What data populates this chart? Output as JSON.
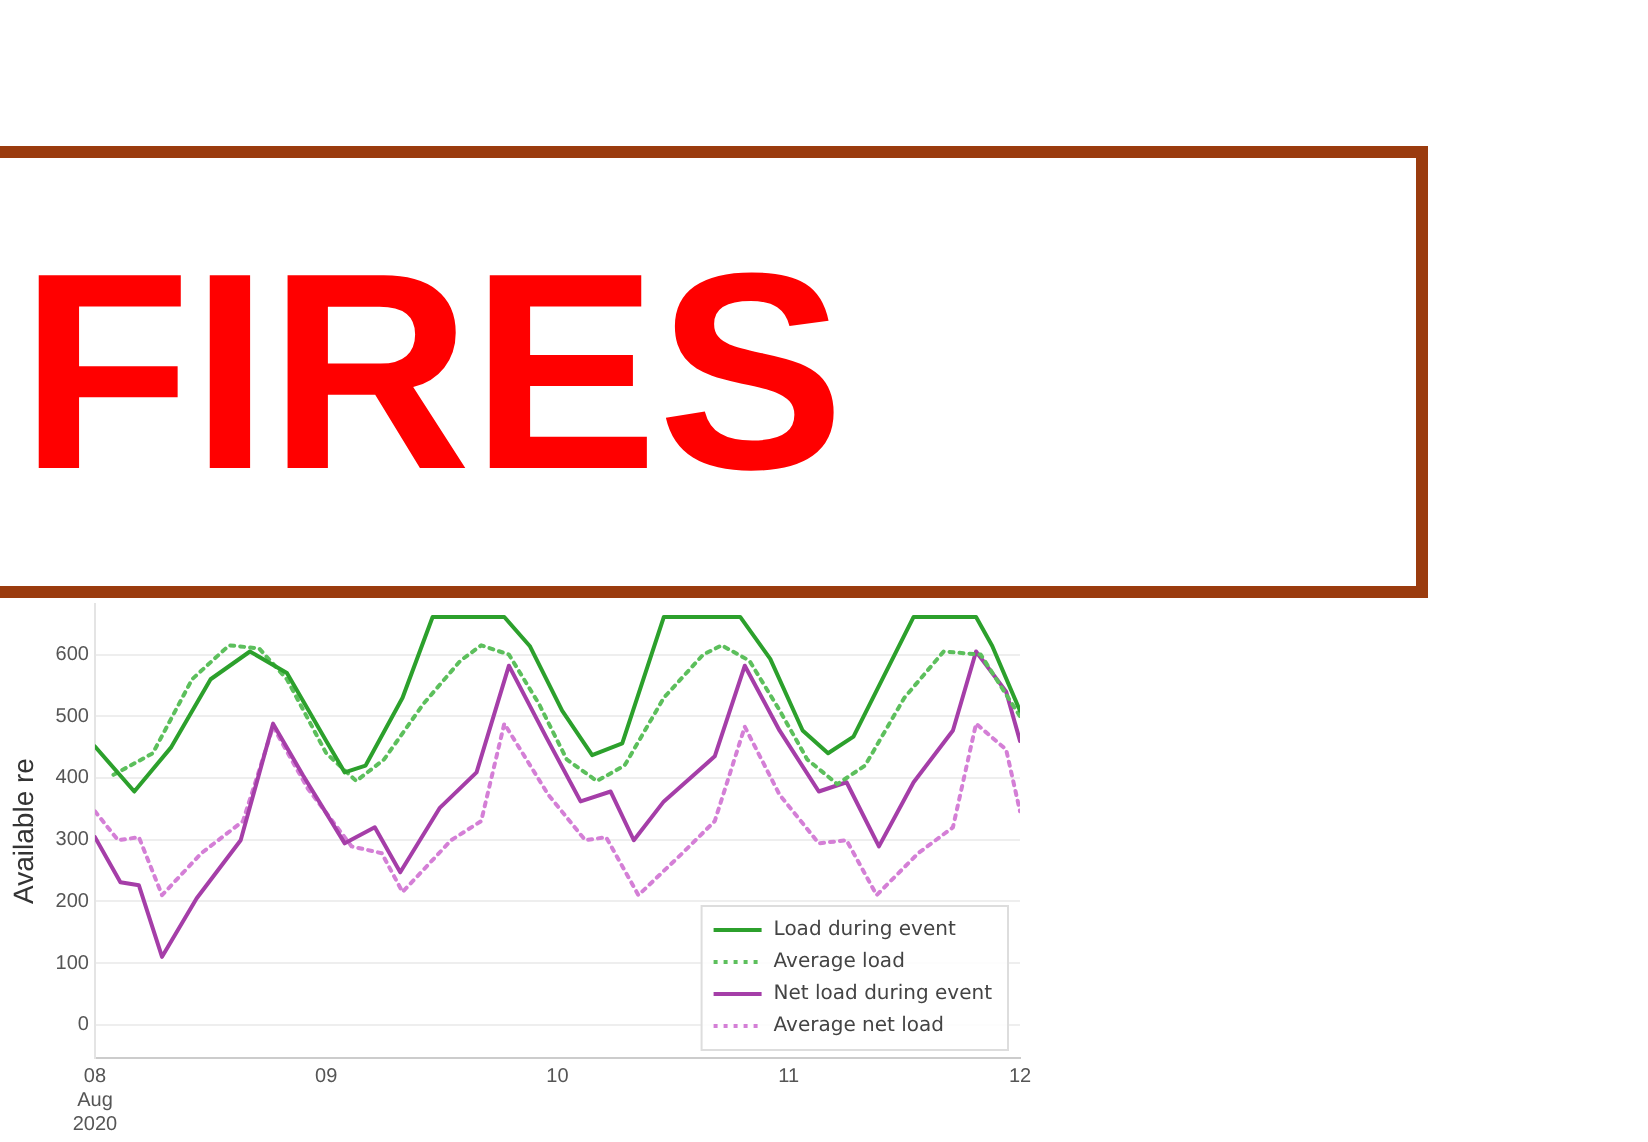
{
  "chart_data": {
    "type": "line",
    "title": "FIRES",
    "ylabel": "Available re",
    "xlim": [
      8,
      12
    ],
    "xticks": [
      {
        "value": 8,
        "label": "08\nAug\n2020"
      },
      {
        "value": 9,
        "label": "09"
      },
      {
        "value": 10,
        "label": "10"
      },
      {
        "value": 11,
        "label": "11"
      },
      {
        "value": 12,
        "label": "12"
      }
    ],
    "ylim": [
      -54,
      682
    ],
    "yticks": [
      0,
      100,
      200,
      300,
      400,
      500,
      600
    ],
    "grid": "y",
    "legend": "bottom right",
    "marker": "none",
    "series": [
      {
        "name": "Load during event",
        "color": "#2ca02c",
        "line_style": "solid",
        "x": [
          8,
          8.17,
          8.33,
          8.5,
          8.67,
          8.83,
          9,
          9.08,
          9.17,
          9.33,
          9.46,
          9.77,
          9.88,
          10.02,
          10.15,
          10.28,
          10.46,
          10.79,
          10.92,
          11.06,
          11.17,
          11.28,
          11.54,
          11.81,
          11.88,
          12
        ],
        "values": [
          451,
          378,
          450,
          560,
          605,
          570,
          460,
          409,
          420,
          530,
          661,
          661,
          614,
          509,
          437,
          456,
          661,
          661,
          593,
          477,
          440,
          467,
          661,
          661,
          614,
          509
        ]
      },
      {
        "name": "Average load",
        "color": "#5cbf5c",
        "line_style": "dotted",
        "x": [
          8.08,
          8.25,
          8.42,
          8.58,
          8.71,
          8.83,
          9,
          9.13,
          9.25,
          9.42,
          9.58,
          9.67,
          9.79,
          9.92,
          10.04,
          10.17,
          10.29,
          10.46,
          10.63,
          10.71,
          10.83,
          10.96,
          11.08,
          11.21,
          11.33,
          11.5,
          11.67,
          11.83,
          12
        ],
        "values": [
          405,
          440,
          560,
          615,
          610,
          560,
          440,
          395,
          430,
          520,
          590,
          615,
          600,
          520,
          430,
          395,
          420,
          530,
          600,
          615,
          590,
          510,
          430,
          390,
          420,
          530,
          605,
          600,
          500
        ]
      },
      {
        "name": "Net load during event",
        "color": "#a53ea8",
        "line_style": "solid",
        "x": [
          8,
          8.11,
          8.19,
          8.29,
          8.44,
          8.63,
          8.77,
          8.9,
          9.08,
          9.21,
          9.32,
          9.49,
          9.65,
          9.79,
          9.95,
          10.1,
          10.23,
          10.33,
          10.46,
          10.68,
          10.81,
          10.96,
          11.13,
          11.25,
          11.39,
          11.54,
          11.71,
          11.81,
          11.94,
          12
        ],
        "values": [
          304,
          231,
          226,
          110,
          205,
          299,
          488,
          404,
          294,
          320,
          247,
          351,
          409,
          582,
          467,
          362,
          378,
          299,
          362,
          435,
          582,
          477,
          378,
          393,
          289,
          393,
          477,
          605,
          540,
          460
        ]
      },
      {
        "name": "Average net load",
        "color": "#d47fd6",
        "line_style": "dotted",
        "x": [
          8,
          8.1,
          8.19,
          8.29,
          8.46,
          8.64,
          8.77,
          8.92,
          9.11,
          9.24,
          9.33,
          9.54,
          9.67,
          9.77,
          9.96,
          10.12,
          10.21,
          10.35,
          10.54,
          10.68,
          10.81,
          10.96,
          11.13,
          11.25,
          11.38,
          11.56,
          11.71,
          11.81,
          11.94,
          12
        ],
        "values": [
          346,
          299,
          304,
          210,
          278,
          330,
          483,
          383,
          289,
          278,
          215,
          299,
          330,
          488,
          373,
          299,
          304,
          210,
          278,
          330,
          483,
          373,
          294,
          299,
          210,
          278,
          320,
          488,
          446,
          346
        ]
      }
    ]
  }
}
